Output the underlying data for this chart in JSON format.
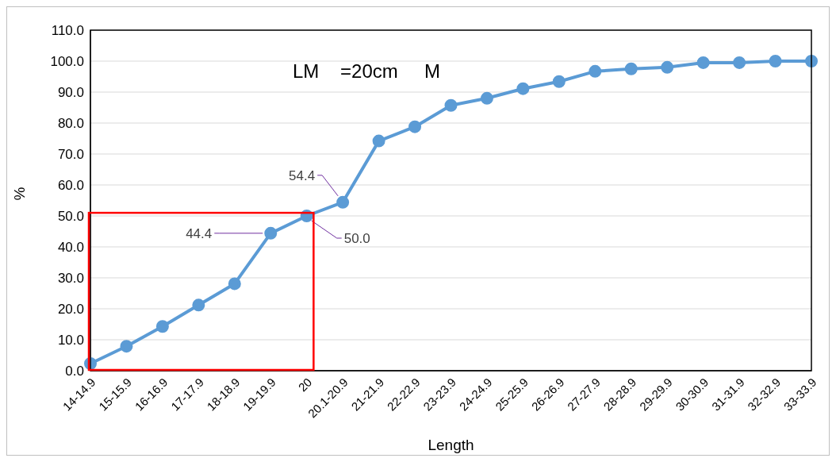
{
  "chart_data": {
    "type": "line",
    "xlabel": "Length",
    "ylabel": "%",
    "categories": [
      "14-14.9",
      "15-15.9",
      "16-16.9",
      "17-17.9",
      "18-18.9",
      "19-19.9",
      "20",
      "20.1-20.9",
      "21-21.9",
      "22-22.9",
      "23-23.9",
      "24-24.9",
      "25-25.9",
      "26-26.9",
      "27-27.9",
      "28-28.9",
      "29-29.9",
      "30-30.9",
      "31-31.9",
      "32-32.9",
      "33-33.9"
    ],
    "series": [
      {
        "color": "#5b9bd5",
        "values": [
          2.3,
          7.9,
          14.3,
          21.2,
          28.1,
          44.4,
          50.0,
          54.4,
          74.2,
          78.8,
          85.7,
          88.0,
          91.1,
          93.4,
          96.7,
          97.5,
          98.0,
          99.5,
          99.5,
          100.0,
          100.0
        ],
        "value_labels": [
          null,
          null,
          null,
          null,
          null,
          "44.4",
          "50.0",
          "54.4",
          null,
          null,
          null,
          null,
          null,
          null,
          null,
          null,
          null,
          null,
          null,
          null,
          null
        ]
      }
    ],
    "ylim": [
      0,
      110
    ],
    "yticks": [
      {
        "value": 0,
        "label": "0.0"
      },
      {
        "value": 10,
        "label": "10.0"
      },
      {
        "value": 20,
        "label": "20.0"
      },
      {
        "value": 30,
        "label": "30.0"
      },
      {
        "value": 40,
        "label": "40.0"
      },
      {
        "value": 50,
        "label": "50.0"
      },
      {
        "value": 60,
        "label": "60.0"
      },
      {
        "value": 70,
        "label": "70.0"
      },
      {
        "value": 80,
        "label": "80.0"
      },
      {
        "value": 90,
        "label": "90.0"
      },
      {
        "value": 100,
        "label": "100.0"
      },
      {
        "value": 110,
        "label": "110.0"
      }
    ],
    "grid": "y",
    "marker": "circle",
    "line_style": "solid",
    "annotations": [
      "LM    =20cm     M"
    ]
  }
}
